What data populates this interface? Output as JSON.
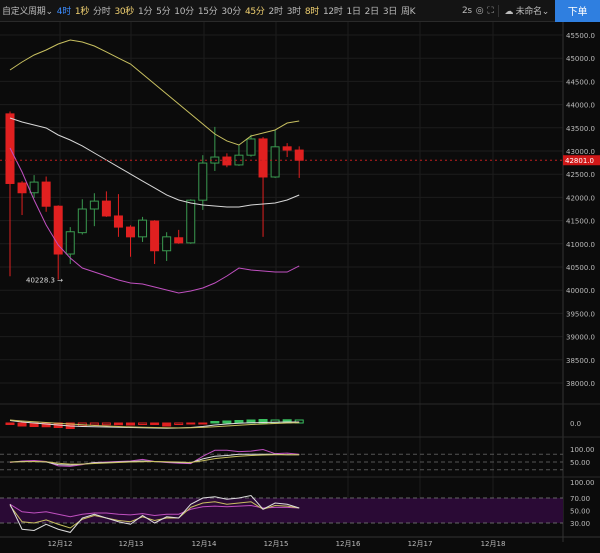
{
  "toolbar": {
    "period_label": "自定义周期",
    "timeframes": [
      {
        "label": "4时",
        "state": "active"
      },
      {
        "label": "1秒",
        "state": "fav"
      },
      {
        "label": "分时",
        "state": ""
      },
      {
        "label": "30秒",
        "state": "fav"
      },
      {
        "label": "1分",
        "state": ""
      },
      {
        "label": "5分",
        "state": ""
      },
      {
        "label": "10分",
        "state": ""
      },
      {
        "label": "15分",
        "state": ""
      },
      {
        "label": "30分",
        "state": ""
      },
      {
        "label": "45分",
        "state": "fav"
      },
      {
        "label": "2时",
        "state": ""
      },
      {
        "label": "3时",
        "state": ""
      },
      {
        "label": "8时",
        "state": "fav"
      },
      {
        "label": "12时",
        "state": ""
      },
      {
        "label": "1日",
        "state": ""
      },
      {
        "label": "2日",
        "state": ""
      },
      {
        "label": "3日",
        "state": ""
      },
      {
        "label": "周K",
        "state": ""
      }
    ],
    "refresh": "2s",
    "layout_name": "未命名",
    "order_button": "下单",
    "accent": "#2f7fe0"
  },
  "chart_data": {
    "type": "candlestick",
    "price_axis": {
      "ticks": [
        45500,
        45000,
        44500,
        44000,
        43500,
        43000,
        42500,
        42000,
        41500,
        41000,
        40500,
        40000,
        39500,
        39000,
        38500,
        38000
      ],
      "range": [
        37700,
        45800
      ],
      "tick_format": "0.0"
    },
    "last_price": "42801.0",
    "low_marker": "40228.3",
    "time_axis": [
      "12月12",
      "12月13",
      "12月14",
      "12月15",
      "12月16",
      "12月17",
      "12月18"
    ],
    "up_color": "#3a9a50",
    "down_color": "#e02020",
    "candles": [
      [
        43800,
        43850,
        40300,
        42300
      ],
      [
        42310,
        42350,
        41620,
        42100
      ],
      [
        42100,
        42480,
        41990,
        42330
      ],
      [
        42330,
        42450,
        41690,
        41810
      ],
      [
        41810,
        41830,
        40228.3,
        40780
      ],
      [
        40780,
        41360,
        40565,
        41260
      ],
      [
        41240,
        41960,
        41200,
        41750
      ],
      [
        41750,
        42090,
        41380,
        41920
      ],
      [
        41920,
        42130,
        41580,
        41600
      ],
      [
        41600,
        42070,
        41150,
        41360
      ],
      [
        41360,
        41400,
        40720,
        41150
      ],
      [
        41150,
        41580,
        41040,
        41510
      ],
      [
        41490,
        41510,
        40565,
        40850
      ],
      [
        40850,
        41250,
        40630,
        41150
      ],
      [
        41130,
        41300,
        41000,
        41020
      ],
      [
        41020,
        41960,
        41000,
        41940
      ],
      [
        41940,
        42910,
        41730,
        42740
      ],
      [
        42740,
        43520,
        42570,
        42870
      ],
      [
        42870,
        42950,
        42650,
        42700
      ],
      [
        42700,
        43130,
        42680,
        42910
      ],
      [
        42910,
        43350,
        42880,
        43260
      ],
      [
        43260,
        43300,
        41150,
        42440
      ],
      [
        42440,
        43450,
        42420,
        43090
      ],
      [
        43090,
        43170,
        42870,
        43020
      ],
      [
        43020,
        43100,
        42420,
        42801
      ]
    ],
    "bollinger": {
      "upper": [
        44746,
        44918,
        45069,
        45177,
        45306,
        45392,
        45349,
        45263,
        45134,
        45004,
        44875,
        44659,
        44444,
        44228,
        44013,
        43797,
        43582,
        43366,
        43216,
        43130,
        43323,
        43388,
        43453,
        43603,
        43647
      ],
      "middle": [
        43711,
        43625,
        43560,
        43496,
        43345,
        43237,
        43108,
        42957,
        42806,
        42655,
        42504,
        42353,
        42203,
        42052,
        41944,
        41879,
        41836,
        41815,
        41793,
        41793,
        41836,
        41858,
        41879,
        41944,
        42052
      ],
      "lower": [
        43065,
        42547,
        41944,
        41405,
        40974,
        40694,
        40478,
        40392,
        40306,
        40220,
        40155,
        40134,
        40069,
        40004,
        39940,
        39983,
        40047,
        40155,
        40306,
        40478,
        40435,
        40414,
        40392,
        40392,
        40522
      ],
      "colors": {
        "upper": "#c8c060",
        "middle": "#d8d8d8",
        "lower": "#c050c0"
      }
    },
    "macd": {
      "zero_label": "0.0",
      "histogram": [
        -30,
        -60,
        -70,
        -75,
        -90,
        -110,
        -60,
        -40,
        -35,
        -35,
        -40,
        -30,
        -30,
        -60,
        -30,
        -20,
        -10,
        30,
        40,
        50,
        60,
        70,
        60,
        65,
        60
      ],
      "dif": [
        50,
        20,
        0,
        -20,
        -40,
        -60,
        -70,
        -75,
        -80,
        -85,
        -90,
        -95,
        -100,
        -105,
        -100,
        -90,
        -70,
        -40,
        -20,
        -5,
        5,
        10,
        15,
        20,
        20
      ],
      "dea": [
        60,
        40,
        25,
        10,
        -5,
        -20,
        -35,
        -50,
        -60,
        -70,
        -78,
        -85,
        -90,
        -95,
        -97,
        -95,
        -88,
        -75,
        -60,
        -45,
        -30,
        -20,
        -10,
        0,
        5
      ]
    },
    "kdj": {
      "ticks": [
        "100.00",
        "50.00"
      ],
      "levels": [
        80,
        20
      ],
      "k": [
        50,
        52,
        52,
        50,
        40,
        38,
        42,
        47,
        48,
        50,
        52,
        54,
        52,
        50,
        48,
        47,
        62,
        72,
        75,
        80,
        80,
        80,
        80,
        78,
        78
      ],
      "d": [
        50,
        51,
        52,
        51,
        45,
        42,
        42,
        44,
        46,
        48,
        50,
        51,
        52,
        51,
        50,
        48,
        55,
        63,
        68,
        72,
        75,
        77,
        78,
        78,
        78
      ],
      "j": [
        48,
        54,
        56,
        52,
        35,
        33,
        40,
        48,
        50,
        52,
        54,
        60,
        52,
        48,
        45,
        44,
        72,
        95,
        95,
        90,
        92,
        98,
        82,
        84,
        80
      ]
    },
    "rsi": {
      "ticks": [
        "100.00",
        "70.00",
        "50.00",
        "30.00"
      ],
      "band": [
        30,
        70
      ],
      "band_color": "#2a0a35",
      "rsi6": [
        60,
        20,
        18,
        28,
        20,
        15,
        38,
        44,
        38,
        32,
        28,
        42,
        30,
        40,
        38,
        60,
        70,
        72,
        68,
        70,
        74,
        52,
        62,
        60,
        54
      ],
      "rsi12": [
        58,
        32,
        30,
        35,
        28,
        22,
        36,
        42,
        38,
        34,
        32,
        40,
        34,
        38,
        38,
        55,
        62,
        64,
        60,
        62,
        64,
        52,
        58,
        57,
        54
      ],
      "rsi24": [
        60,
        48,
        46,
        48,
        44,
        40,
        44,
        46,
        46,
        44,
        43,
        45,
        42,
        44,
        44,
        52,
        56,
        57,
        56,
        57,
        58,
        54,
        55,
        55,
        54
      ]
    }
  }
}
